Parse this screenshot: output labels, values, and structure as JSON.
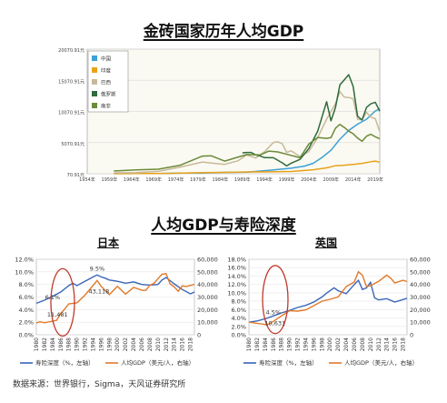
{
  "page": {
    "title_top": "金砖国家历年人均GDP",
    "title_mid": "人均GDP与寿险深度",
    "source": "数据来源：世界银行，Sigma，天风证券研究所"
  },
  "colors": {
    "china": "#3ea0d6",
    "india": "#e8a21a",
    "brazil": "#c9b99a",
    "russia": "#2e6b3d",
    "southafrica": "#6b8a3a",
    "depth": "#3a66b8",
    "gdp": "#e0792b",
    "circle": "#c0392b"
  },
  "chart_data": [
    {
      "type": "line",
      "id": "brics",
      "title": "金砖国家历年人均GDP",
      "y_ticks": [
        "70.91元",
        "5070.91元",
        "10070.91元",
        "15070.91元",
        "20070.91元"
      ],
      "y_tick_values": [
        70.91,
        5070.91,
        10070.91,
        15070.91,
        20070.91
      ],
      "ylim": [
        70.91,
        20070.91
      ],
      "x_ticks": [
        "1954年",
        "1959年",
        "1964年",
        "1969年",
        "1974年",
        "1979年",
        "1984年",
        "1989年",
        "1994年",
        "1999年",
        "2004年",
        "2009年",
        "2014年",
        "2019年"
      ],
      "xlim": [
        1954,
        2020
      ],
      "legend": [
        "中国",
        "印度",
        "巴西",
        "俄罗斯",
        "南非"
      ],
      "series": [
        {
          "name": "中国",
          "color_key": "china",
          "x": [
            1960,
            1965,
            1970,
            1975,
            1980,
            1985,
            1990,
            1995,
            2000,
            2003,
            2005,
            2007,
            2009,
            2011,
            2013,
            2015,
            2017,
            2019,
            2020
          ],
          "y": [
            90,
            100,
            113,
            178,
            195,
            294,
            318,
            610,
            959,
            1290,
            1753,
            2694,
            3832,
            5614,
            7020,
            8033,
            8817,
            10144,
            10500
          ]
        },
        {
          "name": "印度",
          "color_key": "india",
          "x": [
            1960,
            1965,
            1970,
            1975,
            1980,
            1985,
            1990,
            1995,
            2000,
            2005,
            2008,
            2010,
            2012,
            2014,
            2016,
            2018,
            2019,
            2020
          ],
          "y": [
            83,
            119,
            112,
            158,
            267,
            297,
            368,
            374,
            443,
            714,
            1023,
            1358,
            1450,
            1574,
            1733,
            2005,
            2100,
            1930
          ]
        },
        {
          "name": "巴西",
          "color_key": "brazil",
          "x": [
            1960,
            1965,
            1970,
            1975,
            1980,
            1985,
            1988,
            1990,
            1992,
            1994,
            1996,
            1997,
            1998,
            1999,
            2000,
            2002,
            2004,
            2006,
            2008,
            2010,
            2011,
            2012,
            2013,
            2014,
            2015,
            2016,
            2017,
            2018,
            2019,
            2020
          ],
          "y": [
            210,
            260,
            445,
            1144,
            1947,
            1570,
            2150,
            3100,
            2600,
            3600,
            5100,
            5200,
            4900,
            3500,
            3750,
            2830,
            3640,
            5860,
            8830,
            11290,
            13250,
            12370,
            12300,
            12110,
            8810,
            8710,
            9930,
            9150,
            8900,
            6800
          ]
        },
        {
          "name": "俄罗斯",
          "color_key": "russia",
          "x": [
            1989,
            1990,
            1991,
            1992,
            1993,
            1994,
            1996,
            1998,
            1999,
            2000,
            2002,
            2004,
            2006,
            2008,
            2009,
            2010,
            2011,
            2012,
            2013,
            2014,
            2015,
            2016,
            2017,
            2018,
            2019,
            2020
          ],
          "y": [
            3430,
            3490,
            3490,
            3100,
            2930,
            2660,
            2640,
            1830,
            1330,
            1770,
            2380,
            4100,
            6920,
            11640,
            8560,
            10680,
            14330,
            15150,
            15970,
            14100,
            9300,
            8700,
            10720,
            11290,
            11540,
            10100
          ]
        },
        {
          "name": "南非",
          "color_key": "southafrica",
          "x": [
            1960,
            1965,
            1970,
            1975,
            1980,
            1982,
            1985,
            1990,
            1993,
            1995,
            1997,
            2000,
            2002,
            2004,
            2006,
            2008,
            2009,
            2010,
            2011,
            2012,
            2013,
            2014,
            2015,
            2016,
            2017,
            2018,
            2019,
            2020
          ],
          "y": [
            530,
            680,
            800,
            1450,
            2900,
            2950,
            2100,
            3150,
            3100,
            3700,
            3580,
            3020,
            2640,
            4850,
            5900,
            5750,
            5860,
            7380,
            8000,
            7500,
            6900,
            6500,
            5800,
            5300,
            6100,
            6400,
            6000,
            5700
          ]
        }
      ]
    },
    {
      "type": "line",
      "id": "japan",
      "title": "日本",
      "x_ticks": [
        "1980",
        "1982",
        "1984",
        "1986",
        "1988",
        "1990",
        "1992",
        "1994",
        "1996",
        "1998",
        "2000",
        "2002",
        "2004",
        "2006",
        "2008",
        "2010",
        "2012",
        "2014",
        "2016",
        "2018"
      ],
      "xlim": [
        1980,
        2019
      ],
      "y_left_ticks": [
        "0.0%",
        "2.0%",
        "4.0%",
        "6.0%",
        "8.0%",
        "10.0%",
        "12.0%"
      ],
      "y_left_lim": [
        0,
        12
      ],
      "y_right_ticks": [
        "0",
        "10,000",
        "20,000",
        "30,000",
        "40,000",
        "50,000",
        "60,000"
      ],
      "y_right_lim": [
        0,
        60000
      ],
      "annotations": [
        "6.1%",
        "11,481",
        "9.5%",
        "43,118"
      ],
      "legend": [
        "寿险深度（%，左轴）",
        "人均GDP（美元/人，右轴）"
      ],
      "series": [
        {
          "name": "寿险深度（%，左轴）",
          "color_key": "depth",
          "axis": "left",
          "x": [
            1980,
            1982,
            1984,
            1986,
            1988,
            1989,
            1990,
            1992,
            1994,
            1995,
            1996,
            1997,
            1998,
            2000,
            2002,
            2004,
            2006,
            2008,
            2010,
            2011,
            2012,
            2013,
            2014,
            2016,
            2018,
            2019
          ],
          "y": [
            5.0,
            5.5,
            6.1,
            6.8,
            7.8,
            8.2,
            7.8,
            8.5,
            9.2,
            9.5,
            9.2,
            9.0,
            8.7,
            8.5,
            8.2,
            8.4,
            8.0,
            7.9,
            8.0,
            8.7,
            9.1,
            8.6,
            8.1,
            7.2,
            6.5,
            6.8
          ]
        },
        {
          "name": "人均GDP（美元/人，右轴）",
          "color_key": "gdp",
          "axis": "right",
          "x": [
            1980,
            1981,
            1982,
            1984,
            1985,
            1986,
            1987,
            1988,
            1990,
            1992,
            1994,
            1995,
            1996,
            1998,
            2000,
            2002,
            2004,
            2006,
            2007,
            2008,
            2009,
            2010,
            2011,
            2012,
            2013,
            2014,
            2015,
            2016,
            2017,
            2018,
            2019
          ],
          "y": [
            9463,
            10361,
            9578,
            10823,
            11481,
            16882,
            20355,
            24592,
            25359,
            31465,
            39268,
            43118,
            38437,
            31903,
            38532,
            32289,
            37689,
            35434,
            35275,
            39339,
            40855,
            44508,
            48168,
            48603,
            40454,
            38109,
            34524,
            38794,
            38387,
            39159,
            40113
          ]
        }
      ]
    },
    {
      "type": "line",
      "id": "uk",
      "title": "英国",
      "x_ticks": [
        "1980",
        "1982",
        "1984",
        "1986",
        "1988",
        "1990",
        "1992",
        "1994",
        "1996",
        "1998",
        "2000",
        "2002",
        "2004",
        "2006",
        "2008",
        "2010",
        "2012",
        "2014",
        "2016",
        "2018"
      ],
      "xlim": [
        1980,
        2019
      ],
      "y_left_ticks": [
        "0.0%",
        "2.0%",
        "4.0%",
        "6.0%",
        "8.0%",
        "10.0%",
        "12.0%",
        "14.0%",
        "16.0%",
        "18.0%"
      ],
      "y_left_lim": [
        0,
        18
      ],
      "y_right_ticks": [
        "0",
        "10,000",
        "20,000",
        "30,000",
        "40,000",
        "50,000",
        "60,000"
      ],
      "y_right_lim": [
        0,
        60000
      ],
      "annotations": [
        "4.5%",
        "10,631"
      ],
      "legend": [
        "寿险深度（%，左轴）",
        "人均GDP（美元/人，右轴）"
      ],
      "series": [
        {
          "name": "寿险深度（%，左轴）",
          "color_key": "depth",
          "axis": "left",
          "x": [
            1980,
            1982,
            1984,
            1986,
            1988,
            1990,
            1992,
            1994,
            1996,
            1998,
            1999,
            2000,
            2001,
            2002,
            2004,
            2006,
            2007,
            2008,
            2009,
            2010,
            2011,
            2012,
            2014,
            2016,
            2018,
            2019
          ],
          "y": [
            3.0,
            3.3,
            3.8,
            4.5,
            5.2,
            5.8,
            6.5,
            7.0,
            7.8,
            9.0,
            9.8,
            10.5,
            11.2,
            10.5,
            9.8,
            12.0,
            13.0,
            10.8,
            11.2,
            12.5,
            8.8,
            8.3,
            8.6,
            7.8,
            8.4,
            8.7
          ]
        },
        {
          "name": "人均GDP（美元/人，右轴）",
          "color_key": "gdp",
          "axis": "right",
          "x": [
            1980,
            1982,
            1984,
            1985,
            1986,
            1988,
            1990,
            1992,
            1994,
            1996,
            1998,
            2000,
            2002,
            2004,
            2006,
            2007,
            2008,
            2009,
            2010,
            2012,
            2014,
            2015,
            2016,
            2018,
            2019
          ],
          "y": [
            10032,
            9100,
            8200,
            8500,
            10631,
            15000,
            19100,
            18800,
            19700,
            23100,
            26700,
            28200,
            30100,
            38300,
            42000,
            50100,
            47300,
            38300,
            39000,
            42400,
            47400,
            44900,
            41100,
            43300,
            42300
          ]
        }
      ]
    }
  ]
}
